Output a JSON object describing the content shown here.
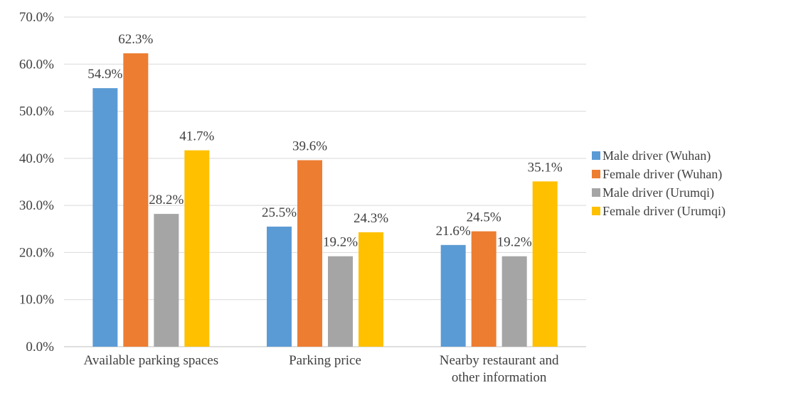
{
  "chart_data": {
    "type": "bar",
    "categories": [
      [
        "Available parking spaces"
      ],
      [
        "Parking price"
      ],
      [
        "Nearby restaurant and",
        "other information"
      ]
    ],
    "series": [
      {
        "name": "Male driver (Wuhan)",
        "color": "#5b9bd5",
        "values": [
          54.9,
          25.5,
          21.6
        ],
        "labels": [
          "54.9%",
          "25.5%",
          "21.6%"
        ]
      },
      {
        "name": "Female driver (Wuhan)",
        "color": "#ed7d31",
        "values": [
          62.3,
          39.6,
          24.5
        ],
        "labels": [
          "62.3%",
          "39.6%",
          "24.5%"
        ]
      },
      {
        "name": "Male driver (Urumqi)",
        "color": "#a5a5a5",
        "values": [
          28.2,
          19.2,
          19.2
        ],
        "labels": [
          "28.2%",
          "19.2%",
          "19.2%"
        ]
      },
      {
        "name": "Female driver (Urumqi)",
        "color": "#ffc000",
        "values": [
          41.7,
          24.3,
          35.1
        ],
        "labels": [
          "41.7%",
          "24.3%",
          "35.1%"
        ]
      }
    ],
    "y_ticks": [
      "0.0%",
      "10.0%",
      "20.0%",
      "30.0%",
      "40.0%",
      "50.0%",
      "60.0%",
      "70.0%"
    ],
    "ylim": [
      0,
      70
    ],
    "grid": true,
    "legend_position": "right"
  }
}
